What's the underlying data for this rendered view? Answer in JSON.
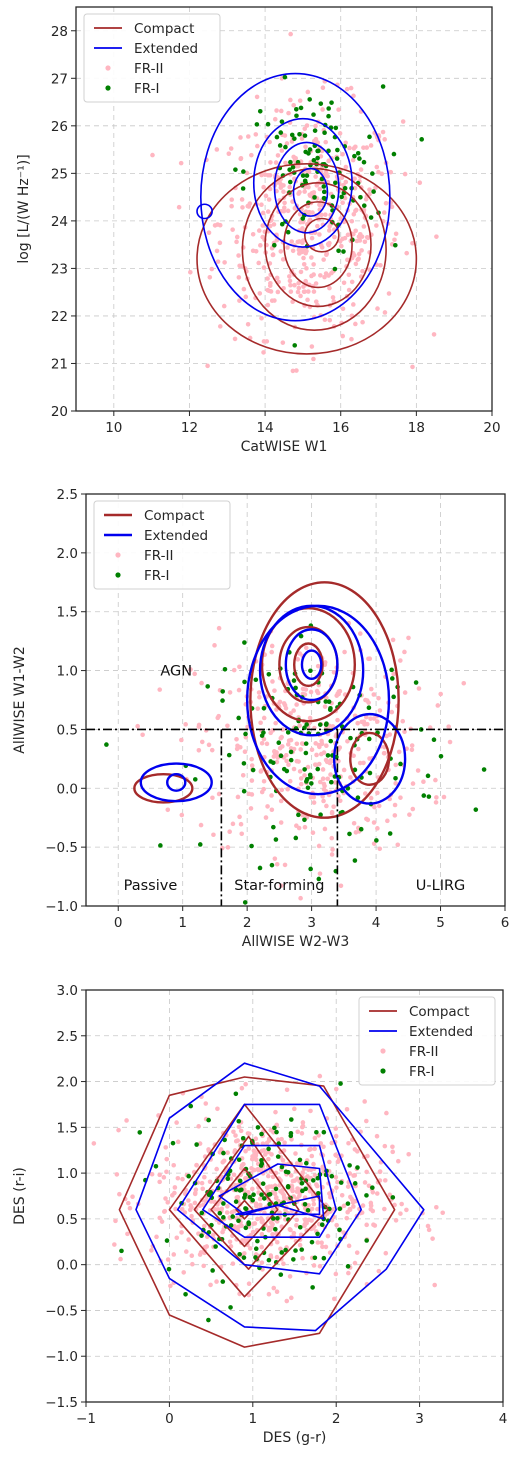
{
  "colors": {
    "compact": "#a52a2a",
    "extended": "#0000ee",
    "fr2": "#ffb6c1",
    "fr1": "#008000",
    "division": "#000000"
  },
  "chart_data": [
    {
      "type": "scatter",
      "title": "",
      "xlabel": "CatWISE W1",
      "ylabel": "log [L/(W Hz⁻¹)]",
      "xlim": [
        9,
        20
      ],
      "ylim": [
        20,
        28.5
      ],
      "xticks": [
        10,
        12,
        14,
        16,
        18,
        20
      ],
      "yticks": [
        20,
        21,
        22,
        23,
        24,
        25,
        26,
        27,
        28
      ],
      "xtick_labels": [
        "10",
        "12",
        "14",
        "16",
        "18",
        "20"
      ],
      "ytick_labels": [
        "20",
        "21",
        "22",
        "23",
        "24",
        "25",
        "26",
        "27",
        "28"
      ],
      "grid": true,
      "legend_position": "top-left",
      "legend": [
        "Compact",
        "Extended",
        "FR-II",
        "FR-I"
      ],
      "fr2_cloud": {
        "center": [
          15.2,
          24.0
        ],
        "spread": [
          1.2,
          1.2
        ],
        "count": 520
      },
      "fr1_cloud": {
        "center": [
          15.3,
          25.0
        ],
        "spread": [
          0.9,
          0.9
        ],
        "count": 110
      },
      "compact_contours": [
        {
          "cx": 15.5,
          "cy": 23.7,
          "rx": 0.45,
          "ry": 0.35
        },
        {
          "cx": 15.4,
          "cy": 23.5,
          "rx": 0.9,
          "ry": 0.9
        },
        {
          "cx": 15.4,
          "cy": 23.5,
          "rx": 1.4,
          "ry": 1.3
        },
        {
          "cx": 15.3,
          "cy": 23.4,
          "rx": 1.9,
          "ry": 1.7
        },
        {
          "cx": 15.1,
          "cy": 23.2,
          "rx": 2.9,
          "ry": 2.0
        }
      ],
      "extended_contours": [
        {
          "cx": 15.2,
          "cy": 24.6,
          "rx": 0.45,
          "ry": 0.5
        },
        {
          "cx": 15.1,
          "cy": 24.7,
          "rx": 0.85,
          "ry": 0.95
        },
        {
          "cx": 15.0,
          "cy": 24.8,
          "rx": 1.3,
          "ry": 1.35
        },
        {
          "cx": 14.8,
          "cy": 24.5,
          "rx": 2.5,
          "ry": 2.6
        },
        {
          "cx": 12.4,
          "cy": 24.2,
          "rx": 0.2,
          "ry": 0.15
        }
      ]
    },
    {
      "type": "scatter",
      "title": "",
      "xlabel": "AllWISE W2-W3",
      "ylabel": "AllWISE W1-W2",
      "xlim": [
        -0.5,
        6
      ],
      "ylim": [
        -1.0,
        2.5
      ],
      "xticks": [
        0,
        1,
        2,
        3,
        4,
        5,
        6
      ],
      "yticks": [
        -1.0,
        -0.5,
        0.0,
        0.5,
        1.0,
        1.5,
        2.0,
        2.5
      ],
      "xtick_labels": [
        "0",
        "1",
        "2",
        "3",
        "4",
        "5",
        "6"
      ],
      "ytick_labels": [
        "−1.0",
        "−0.5",
        "0.0",
        "0.5",
        "1.0",
        "1.5",
        "2.0",
        "2.5"
      ],
      "grid": true,
      "legend_position": "top-left",
      "legend": [
        "Compact",
        "Extended",
        "FR-II",
        "FR-I"
      ],
      "division_lines": [
        {
          "x1": -0.5,
          "y1": 0.5,
          "x2": 6,
          "y2": 0.5
        },
        {
          "x1": 1.6,
          "y1": 0.5,
          "x2": 1.6,
          "y2": -1.0
        },
        {
          "x1": 3.4,
          "y1": 0.5,
          "x2": 3.4,
          "y2": -1.0
        }
      ],
      "region_labels": [
        {
          "text": "AGN",
          "x": 0.9,
          "y": 1.0
        },
        {
          "text": "Passive",
          "x": 0.5,
          "y": -0.82
        },
        {
          "text": "Star-forming",
          "x": 2.5,
          "y": -0.82
        },
        {
          "text": "U-LIRG",
          "x": 5.0,
          "y": -0.82
        }
      ],
      "fr2_cloud": {
        "center": [
          3.0,
          0.35
        ],
        "spread": [
          0.9,
          0.45
        ],
        "count": 400
      },
      "fr1_cloud": {
        "center": [
          3.2,
          0.3
        ],
        "spread": [
          0.9,
          0.45
        ],
        "count": 140
      },
      "compact_contours": [
        {
          "cx": 2.95,
          "cy": 1.05,
          "rx": 0.22,
          "ry": 0.18
        },
        {
          "cx": 2.95,
          "cy": 1.05,
          "rx": 0.45,
          "ry": 0.32
        },
        {
          "cx": 2.95,
          "cy": 1.05,
          "rx": 0.72,
          "ry": 0.48
        },
        {
          "cx": 3.9,
          "cy": 0.25,
          "rx": 0.3,
          "ry": 0.22
        },
        {
          "cx": 3.2,
          "cy": 0.75,
          "rx": 1.15,
          "ry": 1.0
        },
        {
          "cx": 0.7,
          "cy": 0.0,
          "rx": 0.45,
          "ry": 0.12
        }
      ],
      "extended_contours": [
        {
          "cx": 3.0,
          "cy": 1.05,
          "rx": 0.15,
          "ry": 0.12
        },
        {
          "cx": 3.0,
          "cy": 1.05,
          "rx": 0.4,
          "ry": 0.3
        },
        {
          "cx": 3.0,
          "cy": 1.0,
          "rx": 0.8,
          "ry": 0.55
        },
        {
          "cx": 3.1,
          "cy": 0.75,
          "rx": 1.1,
          "ry": 0.8
        },
        {
          "cx": 0.9,
          "cy": 0.05,
          "rx": 0.14,
          "ry": 0.07
        },
        {
          "cx": 0.9,
          "cy": 0.05,
          "rx": 0.55,
          "ry": 0.16
        },
        {
          "cx": 3.9,
          "cy": 0.25,
          "rx": 0.55,
          "ry": 0.38
        }
      ]
    },
    {
      "type": "scatter",
      "title": "",
      "xlabel": "DES (g-r)",
      "ylabel": "DES (r-i)",
      "xlim": [
        -1,
        4
      ],
      "ylim": [
        -1.5,
        3.0
      ],
      "xticks": [
        -1,
        0,
        1,
        2,
        3,
        4
      ],
      "yticks": [
        -1.5,
        -1.0,
        -0.5,
        0.0,
        0.5,
        1.0,
        1.5,
        2.0,
        2.5,
        3.0
      ],
      "xtick_labels": [
        "−1",
        "0",
        "1",
        "2",
        "3",
        "4"
      ],
      "ytick_labels": [
        "−1.5",
        "−1.0",
        "−0.5",
        "0.0",
        "0.5",
        "1.0",
        "1.5",
        "2.0",
        "2.5",
        "3.0"
      ],
      "grid": true,
      "legend_position": "top-right",
      "legend": [
        "Compact",
        "Extended",
        "FR-II",
        "FR-I"
      ],
      "fr2_cloud": {
        "center": [
          1.2,
          0.75
        ],
        "spread": [
          0.7,
          0.45
        ],
        "count": 700
      },
      "fr1_cloud": {
        "center": [
          1.1,
          0.75
        ],
        "spread": [
          0.6,
          0.45
        ],
        "count": 170
      },
      "compact_contours": [
        [
          [
            0.9,
            0.7
          ],
          [
            1.0,
            0.6
          ],
          [
            0.9,
            0.5
          ],
          [
            0.8,
            0.6
          ]
        ],
        [
          [
            0.9,
            1.05
          ],
          [
            1.3,
            0.6
          ],
          [
            0.9,
            0.2
          ],
          [
            0.5,
            0.6
          ]
        ],
        [
          [
            0.95,
            1.4
          ],
          [
            1.55,
            0.6
          ],
          [
            0.95,
            -0.05
          ],
          [
            0.3,
            0.6
          ]
        ],
        [
          [
            0.9,
            1.75
          ],
          [
            1.9,
            0.6
          ],
          [
            0.9,
            -0.35
          ],
          [
            0.0,
            0.6
          ]
        ],
        [
          [
            0.0,
            1.85
          ],
          [
            0.9,
            2.05
          ],
          [
            1.85,
            1.95
          ],
          [
            2.7,
            0.6
          ],
          [
            1.8,
            -0.75
          ],
          [
            0.9,
            -0.9
          ],
          [
            0.0,
            -0.55
          ],
          [
            -0.6,
            0.6
          ]
        ]
      ],
      "extended_contours": [
        [
          [
            0.8,
            0.55
          ],
          [
            1.8,
            0.75
          ],
          [
            1.8,
            0.55
          ]
        ],
        [
          [
            1.3,
            1.1
          ],
          [
            1.8,
            1.05
          ],
          [
            1.85,
            0.5
          ],
          [
            1.3,
            0.65
          ],
          [
            0.9,
            0.55
          ],
          [
            0.6,
            0.75
          ]
        ],
        [
          [
            0.9,
            1.3
          ],
          [
            1.8,
            1.3
          ],
          [
            2.0,
            0.6
          ],
          [
            1.8,
            0.3
          ],
          [
            0.9,
            0.3
          ],
          [
            0.4,
            0.6
          ]
        ],
        [
          [
            0.9,
            1.75
          ],
          [
            1.8,
            1.75
          ],
          [
            2.3,
            0.6
          ],
          [
            1.8,
            -0.1
          ],
          [
            0.9,
            0.0
          ],
          [
            0.1,
            0.6
          ]
        ],
        [
          [
            0.0,
            1.6
          ],
          [
            0.9,
            2.2
          ],
          [
            1.8,
            1.95
          ],
          [
            3.05,
            0.6
          ],
          [
            2.6,
            -0.05
          ],
          [
            1.75,
            -0.72
          ],
          [
            0.9,
            -0.68
          ],
          [
            0.0,
            -0.15
          ],
          [
            -0.4,
            0.6
          ]
        ]
      ]
    }
  ]
}
